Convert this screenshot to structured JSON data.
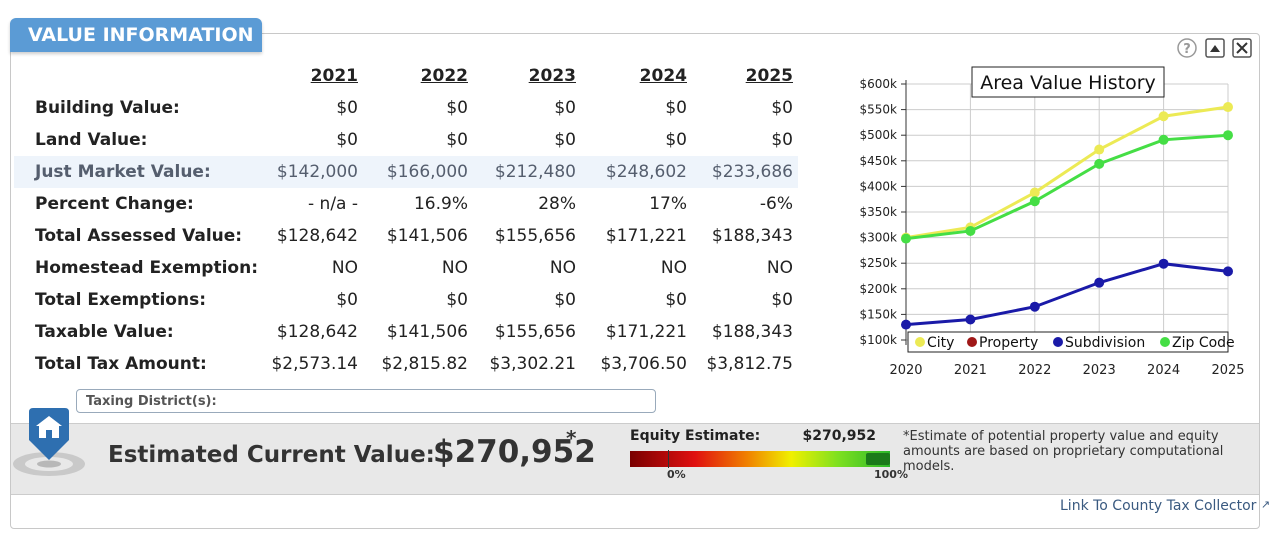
{
  "header": {
    "title": "VALUE INFORMATION"
  },
  "table": {
    "years": [
      "2021",
      "2022",
      "2023",
      "2024",
      "2025"
    ],
    "rows": [
      {
        "label": "Building Value:",
        "values": [
          "$0",
          "$0",
          "$0",
          "$0",
          "$0"
        ]
      },
      {
        "label": "Land Value:",
        "values": [
          "$0",
          "$0",
          "$0",
          "$0",
          "$0"
        ]
      },
      {
        "label": "Just Market Value:",
        "values": [
          "$142,000",
          "$166,000",
          "$212,480",
          "$248,602",
          "$233,686"
        ]
      },
      {
        "label": "Percent Change:",
        "values": [
          "- n/a -",
          "16.9%",
          "28%",
          "17%",
          "-6%"
        ]
      },
      {
        "label": "Total Assessed Value:",
        "values": [
          "$128,642",
          "$141,506",
          "$155,656",
          "$171,221",
          "$188,343"
        ]
      },
      {
        "label": "Homestead Exemption:",
        "values": [
          "NO",
          "NO",
          "NO",
          "NO",
          "NO"
        ]
      },
      {
        "label": "Total Exemptions:",
        "values": [
          "$0",
          "$0",
          "$0",
          "$0",
          "$0"
        ]
      },
      {
        "label": "Taxable Value:",
        "values": [
          "$128,642",
          "$141,506",
          "$155,656",
          "$171,221",
          "$188,343"
        ]
      },
      {
        "label": "Total Tax Amount:",
        "values": [
          "$2,573.14",
          "$2,815.82",
          "$3,302.21",
          "$3,706.50",
          "$3,812.75"
        ]
      }
    ],
    "taxing_district": "Taxing District(s):"
  },
  "estimate": {
    "label": "Estimated Current Value:",
    "value": "$270,952",
    "asterisk": "*",
    "equity_label": "Equity Estimate:",
    "equity_value": "$270,952",
    "bar_min": "0%",
    "bar_max": "100%",
    "note": "*Estimate of potential property value and equity amounts are based on proprietary computational models."
  },
  "link": "Link To County Tax Collector",
  "chart_data": {
    "type": "line",
    "title": "Area Value History",
    "x": [
      2020,
      2021,
      2022,
      2023,
      2024,
      2025
    ],
    "xlim": [
      2020,
      2025
    ],
    "xticks": [
      2020,
      2021,
      2022,
      2023,
      2024,
      2025
    ],
    "ylim": [
      100000,
      600000
    ],
    "yticks": [
      {
        "value": 100000,
        "label": "$100k"
      },
      {
        "value": 150000,
        "label": "$150k"
      },
      {
        "value": 200000,
        "label": "$200k"
      },
      {
        "value": 250000,
        "label": "$250k"
      },
      {
        "value": 300000,
        "label": "$300k"
      },
      {
        "value": 350000,
        "label": "$350k"
      },
      {
        "value": 400000,
        "label": "$400k"
      },
      {
        "value": 450000,
        "label": "$450k"
      },
      {
        "value": 500000,
        "label": "$500k"
      },
      {
        "value": 550000,
        "label": "$550k"
      },
      {
        "value": 600000,
        "label": "$600k"
      }
    ],
    "grid": true,
    "series": [
      {
        "name": "City",
        "color": "#ecea55",
        "values": [
          300000,
          320000,
          388000,
          472000,
          537000,
          555000
        ]
      },
      {
        "name": "Property",
        "color": "#a01818",
        "values": [
          null,
          null,
          null,
          null,
          null,
          null
        ]
      },
      {
        "name": "Subdivision",
        "color": "#1a1aa8",
        "values": [
          130000,
          140000,
          165000,
          212000,
          249000,
          234000
        ]
      },
      {
        "name": "Zip Code",
        "color": "#45de45",
        "values": [
          298000,
          313000,
          371000,
          444000,
          491000,
          500000
        ]
      }
    ]
  }
}
